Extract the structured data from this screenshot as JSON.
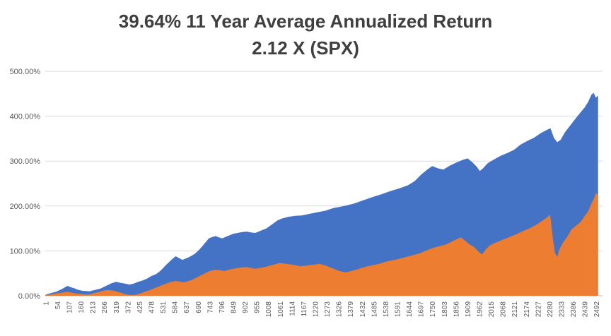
{
  "title": {
    "line1": "39.64% 11 Year Average Annualized Return",
    "line2": "2.12 X (SPX)"
  },
  "colors": {
    "blue_series": "#4472C4",
    "orange_series": "#ED7D31",
    "gridline": "#D9D9D9",
    "axis_line": "#BFBFBF",
    "axis_text": "#595959",
    "title_text": "#3F3F3F",
    "background": "#FFFFFF"
  },
  "chart_data": {
    "type": "area",
    "title": "39.64% 11 Year Average Annualized Return 2.12 X (SPX)",
    "xlabel": "",
    "ylabel": "",
    "ylim": [
      0,
      500
    ],
    "xlim": [
      0,
      2520
    ],
    "grid": true,
    "legend": "none",
    "y_tick_labels": [
      "0.00%",
      "100.00%",
      "200.00%",
      "300.00%",
      "400.00%",
      "500.00%"
    ],
    "x_tick_labels": [
      "1",
      "54",
      "107",
      "160",
      "213",
      "266",
      "319",
      "372",
      "425",
      "478",
      "531",
      "584",
      "637",
      "690",
      "743",
      "796",
      "849",
      "902",
      "955",
      "1008",
      "1061",
      "1114",
      "1167",
      "1220",
      "1273",
      "1326",
      "1379",
      "1432",
      "1485",
      "1538",
      "1591",
      "1644",
      "1697",
      "1750",
      "1803",
      "1856",
      "1909",
      "1962",
      "2015",
      "2068",
      "2121",
      "2174",
      "2227",
      "2280",
      "2333",
      "2386",
      "2439",
      "2492"
    ],
    "series": [
      {
        "name": "blue",
        "color": "#4472C4",
        "points": [
          [
            0,
            2
          ],
          [
            25,
            6
          ],
          [
            50,
            9
          ],
          [
            75,
            15
          ],
          [
            100,
            22
          ],
          [
            115,
            19
          ],
          [
            130,
            17
          ],
          [
            150,
            13
          ],
          [
            170,
            11
          ],
          [
            200,
            10
          ],
          [
            225,
            13
          ],
          [
            250,
            16
          ],
          [
            275,
            22
          ],
          [
            300,
            28
          ],
          [
            320,
            31
          ],
          [
            340,
            29
          ],
          [
            360,
            27
          ],
          [
            380,
            25
          ],
          [
            400,
            27
          ],
          [
            420,
            31
          ],
          [
            440,
            34
          ],
          [
            460,
            38
          ],
          [
            480,
            44
          ],
          [
            500,
            48
          ],
          [
            515,
            53
          ],
          [
            530,
            60
          ],
          [
            545,
            68
          ],
          [
            560,
            75
          ],
          [
            575,
            82
          ],
          [
            590,
            88
          ],
          [
            605,
            84
          ],
          [
            620,
            80
          ],
          [
            635,
            83
          ],
          [
            650,
            86
          ],
          [
            665,
            90
          ],
          [
            680,
            95
          ],
          [
            695,
            102
          ],
          [
            710,
            110
          ],
          [
            725,
            119
          ],
          [
            740,
            128
          ],
          [
            755,
            131
          ],
          [
            770,
            133
          ],
          [
            785,
            130
          ],
          [
            800,
            128
          ],
          [
            815,
            131
          ],
          [
            830,
            134
          ],
          [
            850,
            138
          ],
          [
            870,
            140
          ],
          [
            890,
            142
          ],
          [
            910,
            143
          ],
          [
            930,
            141
          ],
          [
            950,
            140
          ],
          [
            970,
            144
          ],
          [
            1000,
            150
          ],
          [
            1020,
            157
          ],
          [
            1050,
            168
          ],
          [
            1070,
            172
          ],
          [
            1100,
            176
          ],
          [
            1130,
            178
          ],
          [
            1160,
            179
          ],
          [
            1200,
            183
          ],
          [
            1240,
            187
          ],
          [
            1270,
            190
          ],
          [
            1300,
            195
          ],
          [
            1330,
            198
          ],
          [
            1360,
            201
          ],
          [
            1400,
            206
          ],
          [
            1440,
            213
          ],
          [
            1480,
            220
          ],
          [
            1520,
            226
          ],
          [
            1560,
            233
          ],
          [
            1600,
            239
          ],
          [
            1640,
            246
          ],
          [
            1670,
            255
          ],
          [
            1700,
            270
          ],
          [
            1725,
            280
          ],
          [
            1750,
            289
          ],
          [
            1775,
            284
          ],
          [
            1800,
            281
          ],
          [
            1830,
            290
          ],
          [
            1860,
            297
          ],
          [
            1890,
            303
          ],
          [
            1910,
            306
          ],
          [
            1930,
            298
          ],
          [
            1950,
            288
          ],
          [
            1965,
            278
          ],
          [
            1980,
            284
          ],
          [
            2000,
            295
          ],
          [
            2030,
            304
          ],
          [
            2060,
            312
          ],
          [
            2090,
            318
          ],
          [
            2120,
            325
          ],
          [
            2150,
            337
          ],
          [
            2180,
            345
          ],
          [
            2210,
            352
          ],
          [
            2240,
            362
          ],
          [
            2270,
            370
          ],
          [
            2285,
            373
          ],
          [
            2300,
            352
          ],
          [
            2315,
            342
          ],
          [
            2330,
            347
          ],
          [
            2350,
            364
          ],
          [
            2375,
            380
          ],
          [
            2400,
            396
          ],
          [
            2420,
            408
          ],
          [
            2440,
            420
          ],
          [
            2455,
            432
          ],
          [
            2470,
            448
          ],
          [
            2480,
            452
          ],
          [
            2490,
            441
          ],
          [
            2500,
            446
          ]
        ]
      },
      {
        "name": "orange",
        "color": "#ED7D31",
        "points": [
          [
            0,
            1
          ],
          [
            25,
            3
          ],
          [
            50,
            5
          ],
          [
            75,
            7
          ],
          [
            100,
            9
          ],
          [
            120,
            7
          ],
          [
            140,
            5
          ],
          [
            160,
            4
          ],
          [
            180,
            3
          ],
          [
            200,
            3
          ],
          [
            220,
            6
          ],
          [
            240,
            8
          ],
          [
            260,
            11
          ],
          [
            280,
            13
          ],
          [
            300,
            12
          ],
          [
            320,
            10
          ],
          [
            340,
            7
          ],
          [
            360,
            4
          ],
          [
            380,
            2
          ],
          [
            400,
            2
          ],
          [
            415,
            3
          ],
          [
            430,
            5
          ],
          [
            450,
            9
          ],
          [
            470,
            12
          ],
          [
            490,
            16
          ],
          [
            510,
            20
          ],
          [
            530,
            24
          ],
          [
            550,
            28
          ],
          [
            570,
            31
          ],
          [
            590,
            33
          ],
          [
            610,
            31
          ],
          [
            630,
            30
          ],
          [
            650,
            33
          ],
          [
            670,
            37
          ],
          [
            690,
            42
          ],
          [
            710,
            47
          ],
          [
            730,
            52
          ],
          [
            750,
            56
          ],
          [
            770,
            58
          ],
          [
            790,
            57
          ],
          [
            810,
            55
          ],
          [
            830,
            58
          ],
          [
            850,
            60
          ],
          [
            870,
            62
          ],
          [
            890,
            63
          ],
          [
            910,
            64
          ],
          [
            930,
            62
          ],
          [
            950,
            60
          ],
          [
            970,
            62
          ],
          [
            1000,
            65
          ],
          [
            1030,
            69
          ],
          [
            1060,
            73
          ],
          [
            1090,
            71
          ],
          [
            1120,
            69
          ],
          [
            1150,
            66
          ],
          [
            1180,
            67
          ],
          [
            1210,
            69
          ],
          [
            1240,
            71
          ],
          [
            1270,
            67
          ],
          [
            1300,
            61
          ],
          [
            1330,
            55
          ],
          [
            1360,
            52
          ],
          [
            1390,
            56
          ],
          [
            1420,
            60
          ],
          [
            1450,
            65
          ],
          [
            1480,
            68
          ],
          [
            1510,
            71
          ],
          [
            1540,
            76
          ],
          [
            1570,
            79
          ],
          [
            1600,
            82
          ],
          [
            1630,
            86
          ],
          [
            1660,
            90
          ],
          [
            1690,
            94
          ],
          [
            1720,
            100
          ],
          [
            1750,
            106
          ],
          [
            1780,
            110
          ],
          [
            1810,
            114
          ],
          [
            1840,
            121
          ],
          [
            1860,
            126
          ],
          [
            1880,
            130
          ],
          [
            1900,
            122
          ],
          [
            1920,
            114
          ],
          [
            1940,
            108
          ],
          [
            1960,
            98
          ],
          [
            1975,
            92
          ],
          [
            1990,
            102
          ],
          [
            2010,
            112
          ],
          [
            2040,
            119
          ],
          [
            2070,
            125
          ],
          [
            2100,
            131
          ],
          [
            2130,
            137
          ],
          [
            2160,
            144
          ],
          [
            2190,
            150
          ],
          [
            2220,
            158
          ],
          [
            2250,
            168
          ],
          [
            2270,
            175
          ],
          [
            2283,
            181
          ],
          [
            2295,
            130
          ],
          [
            2305,
            95
          ],
          [
            2315,
            86
          ],
          [
            2325,
            103
          ],
          [
            2340,
            118
          ],
          [
            2360,
            131
          ],
          [
            2380,
            148
          ],
          [
            2400,
            156
          ],
          [
            2420,
            164
          ],
          [
            2440,
            178
          ],
          [
            2455,
            188
          ],
          [
            2470,
            206
          ],
          [
            2480,
            215
          ],
          [
            2490,
            229
          ],
          [
            2500,
            223
          ]
        ]
      }
    ]
  }
}
